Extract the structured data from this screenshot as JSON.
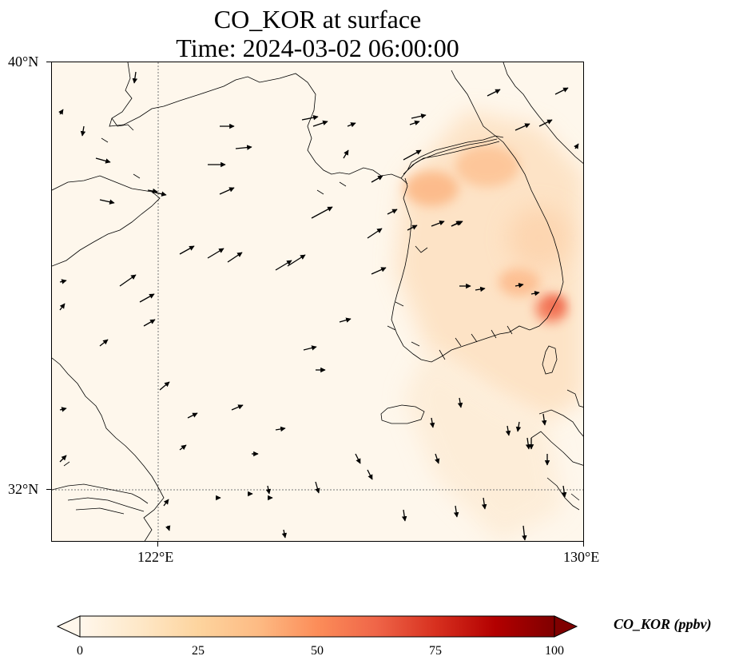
{
  "title": {
    "line1": "CO_KOR at surface",
    "line2": "Time: 2024-03-02 06:00:00"
  },
  "axes": {
    "lat_ticks": [
      "40°N",
      "32°N"
    ],
    "lon_ticks": [
      "122°E",
      "130°E"
    ],
    "lon_range": [
      120,
      130
    ],
    "lat_range": [
      31,
      40
    ],
    "gridlines": "dotted"
  },
  "colorbar": {
    "label": "CO_KOR (ppbv)",
    "ticks": [
      "0",
      "25",
      "50",
      "75",
      "100"
    ],
    "range": [
      0,
      100
    ],
    "extend": "both",
    "colormap": "OrRd",
    "colors": [
      "#fff7ec",
      "#fee8c8",
      "#fdd49e",
      "#fdbb84",
      "#fc8d59",
      "#ef6548",
      "#d7301f",
      "#b30000",
      "#7f0000"
    ]
  },
  "colors": {
    "ocean_background": "#fef7ec",
    "coastline": "#000000",
    "arrow": "#000000"
  }
}
